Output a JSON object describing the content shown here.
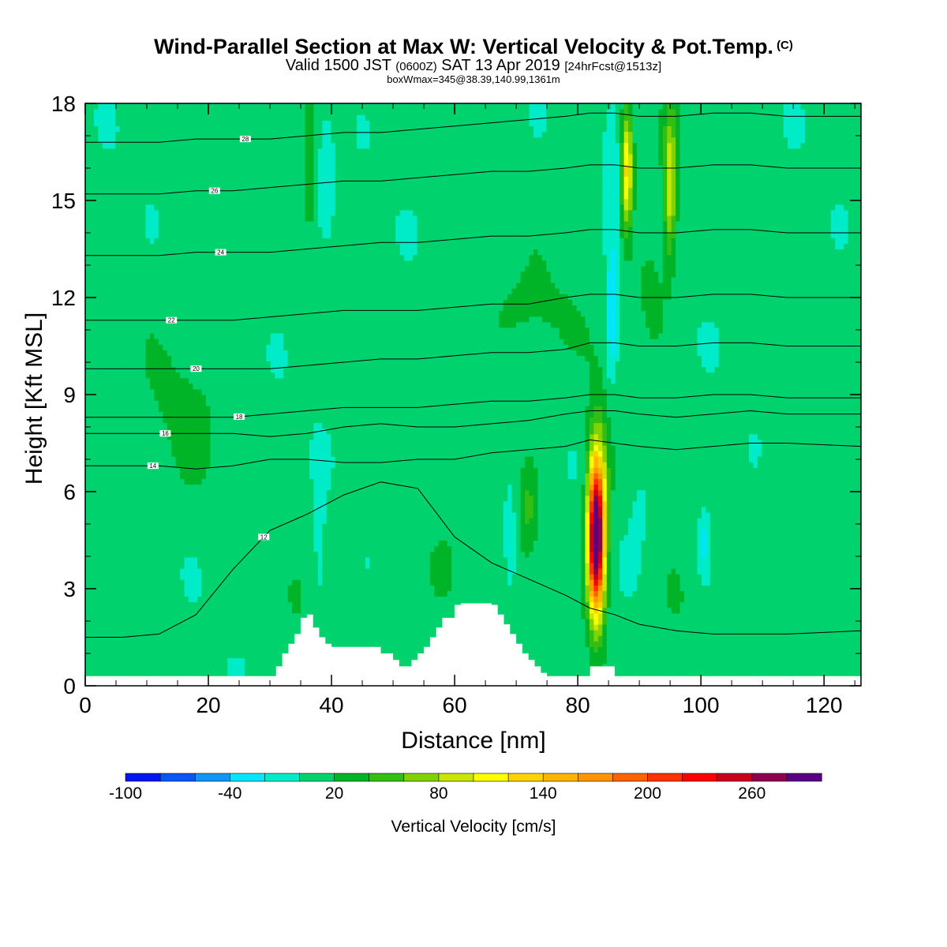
{
  "title": "Wind-Parallel Section at Max W: Vertical Velocity & Pot.Temp.",
  "title_mark": "(C)",
  "subtitle": {
    "pre": "Valid 1500 JST",
    "zulu": "(0600Z)",
    "mid": "SAT 13 Apr 2019",
    "fcst": "[24hrFcst@1513z]"
  },
  "box_line": "boxWmax=345@38.39,140.99,1361m",
  "chart_data": {
    "type": "heatmap",
    "xlabel": "Distance [nm]",
    "ylabel": "Height [Kft MSL]",
    "xlim": [
      0,
      126
    ],
    "ylim": [
      0,
      18
    ],
    "x_ticks": [
      "0",
      "20",
      "40",
      "60",
      "80",
      "100",
      "120"
    ],
    "y_ticks": [
      "0",
      "3",
      "6",
      "9",
      "12",
      "15",
      "18"
    ],
    "colorbar": {
      "label": "Vertical Velocity [cm/s]",
      "levels": [
        -100,
        -80,
        -60,
        -40,
        -20,
        0,
        20,
        40,
        60,
        80,
        100,
        120,
        140,
        160,
        180,
        200,
        220,
        240,
        260,
        280,
        300
      ],
      "tick_labels": [
        "-100",
        "-40",
        "20",
        "80",
        "140",
        "200",
        "260"
      ],
      "tick_values": [
        -100,
        -40,
        20,
        80,
        140,
        200,
        260
      ],
      "colors": [
        "#0016f0",
        "#0a55f5",
        "#1296f5",
        "#00e6ff",
        "#00ebc8",
        "#00d26e",
        "#00b428",
        "#32be14",
        "#82d200",
        "#c8e600",
        "#ffff00",
        "#ffd200",
        "#ffb400",
        "#ff9600",
        "#ff6400",
        "#ff3200",
        "#ff0000",
        "#c8001e",
        "#8c0050",
        "#5a0082"
      ]
    },
    "max_w": {
      "value_cms": 345,
      "lat": 38.39,
      "lon": 140.99,
      "height_m": 1361,
      "distance_nm": 83
    },
    "terrain_kft": {
      "x": [
        0,
        30,
        31,
        32,
        33,
        34,
        35,
        36,
        37,
        38,
        39,
        40,
        44,
        48,
        50,
        51,
        52,
        53,
        54,
        55,
        56,
        57,
        58,
        60,
        61,
        62,
        63,
        64,
        66,
        67,
        68,
        69,
        70,
        71,
        72,
        73,
        74,
        75,
        76,
        80,
        82,
        85,
        86,
        126
      ],
      "height": [
        0.3,
        0.3,
        0.6,
        1.0,
        1.3,
        1.6,
        2.1,
        2.2,
        1.8,
        1.5,
        1.3,
        1.2,
        1.2,
        1.0,
        0.8,
        0.6,
        0.6,
        0.8,
        1.0,
        1.2,
        1.5,
        1.8,
        2.1,
        2.5,
        2.55,
        2.55,
        2.55,
        2.55,
        2.5,
        2.2,
        1.9,
        1.6,
        1.3,
        1.0,
        0.8,
        0.6,
        0.4,
        0.3,
        0.3,
        0.3,
        0.6,
        0.6,
        0.3,
        0.3
      ]
    },
    "w_features_cms": [
      {
        "x": 83,
        "y": 4.5,
        "w": 290,
        "xw": 1.3,
        "yw": 2.3
      },
      {
        "x": 83.3,
        "y": 6.0,
        "w": 60,
        "xw": 1.8,
        "yw": 2.6
      },
      {
        "x": 88,
        "y": 16.0,
        "w": 120,
        "xw": 0.9,
        "yw": 1.8
      },
      {
        "x": 95,
        "y": 15.5,
        "w": 90,
        "xw": 1.0,
        "yw": 2.2
      },
      {
        "x": 72,
        "y": 5.5,
        "w": 35,
        "xw": 1.5,
        "yw": 1.5
      },
      {
        "x": 58,
        "y": 3.5,
        "w": 30,
        "xw": 2.5,
        "yw": 1.2
      },
      {
        "x": 36.5,
        "y": 16.5,
        "w": 30,
        "xw": 1.0,
        "yw": 2.5
      },
      {
        "x": 34,
        "y": 2.8,
        "w": 25,
        "xw": 1.0,
        "yw": 0.6
      },
      {
        "x": 92,
        "y": 12.5,
        "w": 20,
        "xw": 3.0,
        "yw": 2.0
      },
      {
        "x": 72,
        "y": 11.5,
        "w": 15,
        "xw": 8.0,
        "yw": 1.5
      },
      {
        "x": 16,
        "y": 8.5,
        "w": 14,
        "xw": 6.0,
        "yw": 2.5
      },
      {
        "x": 122,
        "y": 6.0,
        "w": 18,
        "xw": 3.0,
        "yw": 2.0
      },
      {
        "x": 96,
        "y": 2.5,
        "w": 15,
        "xw": 3.0,
        "yw": 1.5
      },
      {
        "x": 69,
        "y": 4.5,
        "w": -30,
        "xw": 1.0,
        "yw": 1.5
      },
      {
        "x": 38,
        "y": 4.0,
        "w": -20,
        "xw": 1.0,
        "yw": 2.5
      },
      {
        "x": 39,
        "y": 16.0,
        "w": -18,
        "xw": 1.5,
        "yw": 2.0
      },
      {
        "x": 85.5,
        "y": 11.5,
        "w": -45,
        "xw": 0.8,
        "yw": 2.0
      },
      {
        "x": 85.5,
        "y": 15.0,
        "w": -22,
        "xw": 1.2,
        "yw": 2.5
      },
      {
        "x": 100.5,
        "y": 4.5,
        "w": -35,
        "xw": 1.0,
        "yw": 1.0
      },
      {
        "x": 90,
        "y": 6.0,
        "w": -10,
        "xw": 2.0,
        "yw": 2.0
      }
    ],
    "theta_contours": [
      {
        "label": "12",
        "label_x": 29,
        "y": [
          1.5,
          1.5,
          1.6,
          2.2,
          3.6,
          4.8,
          5.3,
          5.9,
          6.3,
          6.1,
          4.6,
          3.8,
          3.3,
          2.8,
          2.4,
          2.2,
          1.9,
          1.7,
          1.6,
          1.6,
          1.6,
          1.7
        ]
      },
      {
        "label": "14",
        "label_x": 11,
        "y": [
          6.8,
          6.8,
          6.8,
          6.7,
          6.8,
          7.0,
          7.0,
          6.9,
          6.9,
          7.0,
          7.0,
          7.2,
          7.3,
          7.4,
          7.6,
          7.5,
          7.4,
          7.3,
          7.4,
          7.5,
          7.5,
          7.4
        ]
      },
      {
        "label": "16",
        "label_x": 13,
        "y": [
          7.8,
          7.8,
          7.8,
          7.8,
          7.8,
          7.7,
          7.8,
          8.0,
          8.1,
          8.0,
          8.0,
          8.1,
          8.2,
          8.4,
          8.5,
          8.5,
          8.4,
          8.3,
          8.4,
          8.5,
          8.4,
          8.4
        ]
      },
      {
        "label": "18",
        "label_x": 25,
        "y": [
          8.3,
          8.3,
          8.3,
          8.3,
          8.3,
          8.4,
          8.5,
          8.6,
          8.6,
          8.6,
          8.7,
          8.8,
          8.8,
          8.9,
          9.0,
          9.0,
          8.9,
          8.9,
          9.0,
          9.0,
          8.9,
          8.9
        ]
      },
      {
        "label": "20",
        "label_x": 18,
        "y": [
          9.8,
          9.8,
          9.8,
          9.8,
          9.8,
          9.8,
          9.9,
          10.0,
          10.1,
          10.1,
          10.2,
          10.3,
          10.3,
          10.4,
          10.6,
          10.6,
          10.5,
          10.5,
          10.6,
          10.6,
          10.5,
          10.5
        ]
      },
      {
        "label": "22",
        "label_x": 14,
        "y": [
          11.3,
          11.3,
          11.3,
          11.3,
          11.3,
          11.4,
          11.5,
          11.6,
          11.6,
          11.6,
          11.7,
          11.8,
          11.8,
          12.0,
          12.1,
          12.1,
          12.0,
          12.0,
          12.1,
          12.1,
          12.0,
          12.0
        ]
      },
      {
        "label": "24",
        "label_x": 22,
        "y": [
          13.3,
          13.3,
          13.3,
          13.4,
          13.4,
          13.4,
          13.5,
          13.6,
          13.7,
          13.7,
          13.8,
          13.9,
          13.9,
          14.0,
          14.1,
          14.1,
          14.0,
          14.0,
          14.1,
          14.1,
          14.0,
          14.0
        ]
      },
      {
        "label": "26",
        "label_x": 21,
        "y": [
          15.2,
          15.2,
          15.2,
          15.3,
          15.3,
          15.4,
          15.5,
          15.6,
          15.6,
          15.7,
          15.8,
          15.9,
          15.9,
          16.0,
          16.1,
          16.1,
          16.0,
          16.0,
          16.1,
          16.1,
          16.0,
          16.0
        ]
      },
      {
        "label": "28",
        "label_x": 26,
        "y": [
          16.8,
          16.8,
          16.8,
          16.9,
          16.9,
          16.9,
          17.0,
          17.1,
          17.1,
          17.2,
          17.3,
          17.4,
          17.5,
          17.6,
          17.7,
          17.7,
          17.6,
          17.6,
          17.7,
          17.7,
          17.6,
          17.6
        ]
      }
    ],
    "theta_contour_x": [
      0,
      6,
      12,
      18,
      24,
      30,
      36,
      42,
      48,
      54,
      60,
      66,
      72,
      78,
      82,
      86,
      90,
      96,
      102,
      108,
      114,
      126
    ]
  }
}
